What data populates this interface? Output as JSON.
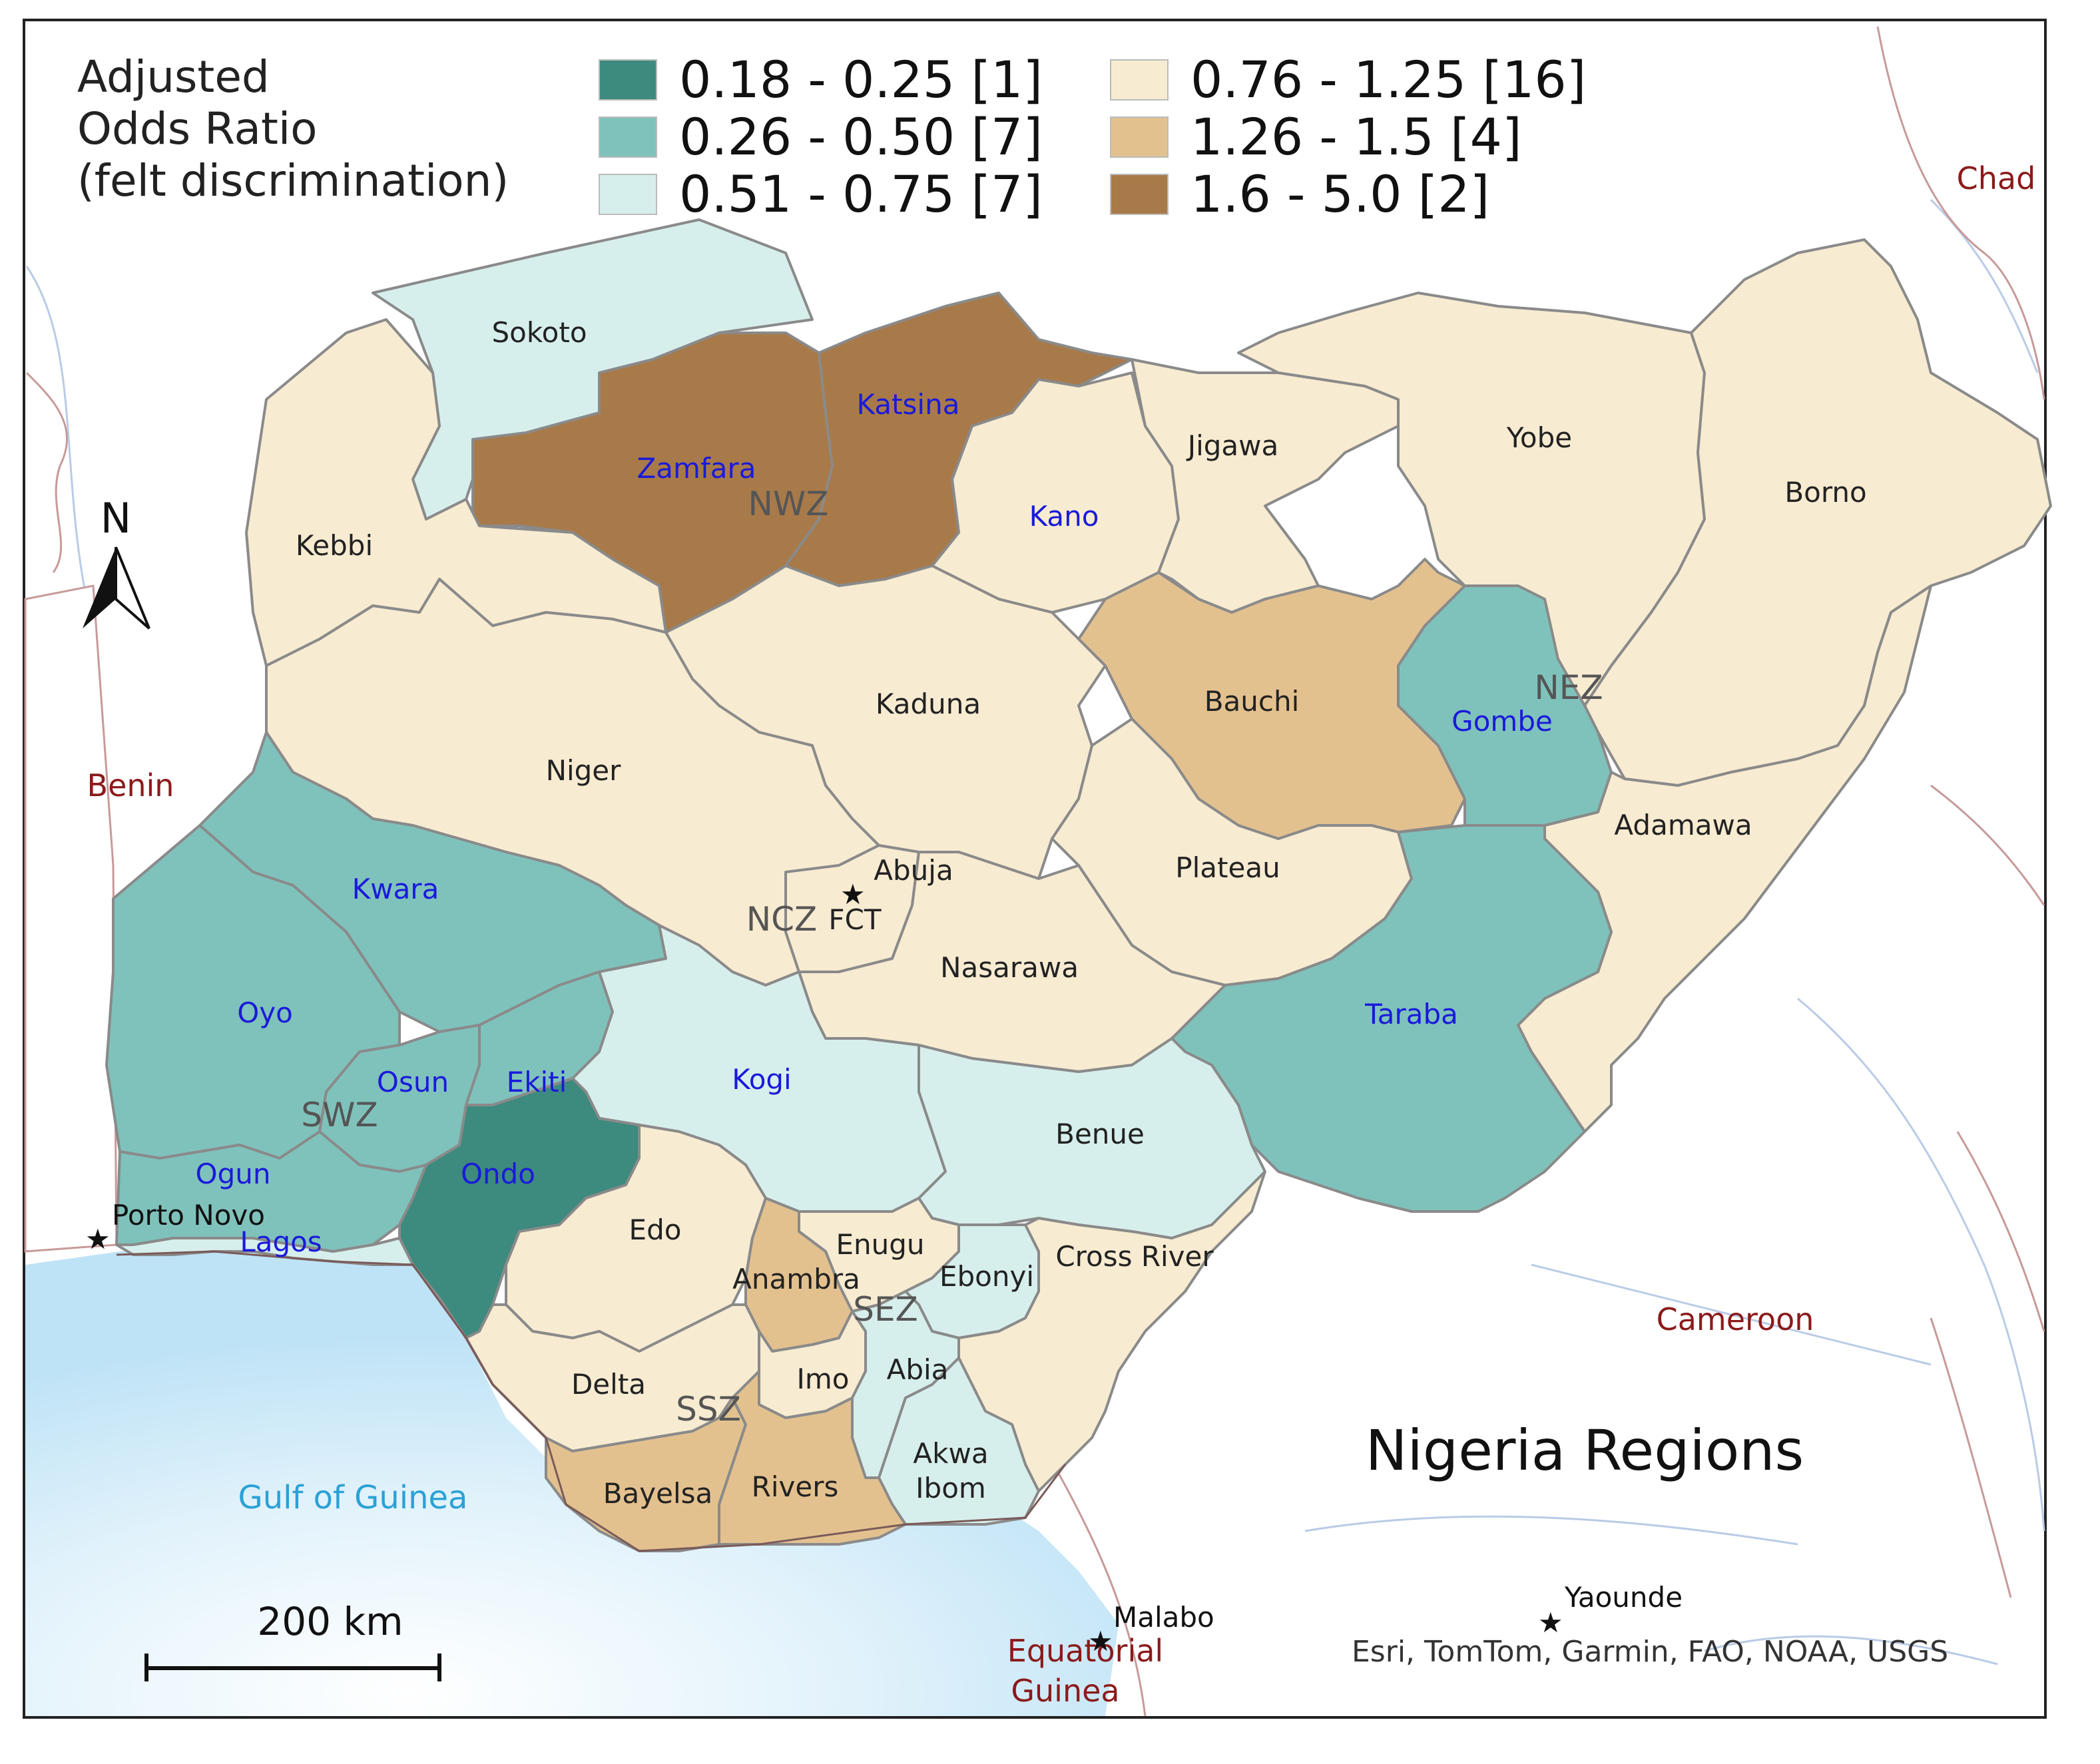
{
  "legend": {
    "title_lines": [
      "Adjusted",
      "Odds Ratio",
      "(felt discrimination)"
    ],
    "classes": [
      {
        "label": "0.18 - 0.25 [1]",
        "color": "#3d8a7e"
      },
      {
        "label": "0.26 - 0.50 [7]",
        "color": "#7fc2bb"
      },
      {
        "label": "0.51 - 0.75 [7]",
        "color": "#d7efec"
      },
      {
        "label": "0.76 - 1.25 [16]",
        "color": "#f7ebd1"
      },
      {
        "label": "1.26 - 1.5 [4]",
        "color": "#e3c18f"
      },
      {
        "label": "1.6 - 5.0 [2]",
        "color": "#a87a49"
      }
    ]
  },
  "title": "Nigeria Regions",
  "credits": "Esri, TomTom, Garmin, FAO, NOAA, USGS",
  "scale_bar": {
    "label": "200 km"
  },
  "north_arrow": {
    "label": "N"
  },
  "states": [
    {
      "name": "Sokoto",
      "class": 2,
      "highlight": false
    },
    {
      "name": "Zamfara",
      "class": 5,
      "highlight": true
    },
    {
      "name": "Katsina",
      "class": 5,
      "highlight": true
    },
    {
      "name": "Kebbi",
      "class": 3,
      "highlight": false
    },
    {
      "name": "Kano",
      "class": 3,
      "highlight": true
    },
    {
      "name": "Jigawa",
      "class": 3,
      "highlight": false
    },
    {
      "name": "Yobe",
      "class": 3,
      "highlight": false
    },
    {
      "name": "Borno",
      "class": 3,
      "highlight": false
    },
    {
      "name": "Kaduna",
      "class": 3,
      "highlight": false
    },
    {
      "name": "Bauchi",
      "class": 4,
      "highlight": false
    },
    {
      "name": "Gombe",
      "class": 1,
      "highlight": true
    },
    {
      "name": "Niger",
      "class": 3,
      "highlight": false
    },
    {
      "name": "Abuja",
      "class": 3,
      "highlight": false
    },
    {
      "name": "FCT",
      "class": 3,
      "highlight": false
    },
    {
      "name": "Plateau",
      "class": 3,
      "highlight": false
    },
    {
      "name": "Adamawa",
      "class": 3,
      "highlight": false
    },
    {
      "name": "Kwara",
      "class": 1,
      "highlight": true
    },
    {
      "name": "Nasarawa",
      "class": 3,
      "highlight": false
    },
    {
      "name": "Oyo",
      "class": 1,
      "highlight": true
    },
    {
      "name": "Taraba",
      "class": 1,
      "highlight": true
    },
    {
      "name": "Osun",
      "class": 1,
      "highlight": true
    },
    {
      "name": "Ekiti",
      "class": 1,
      "highlight": true
    },
    {
      "name": "Kogi",
      "class": 2,
      "highlight": true
    },
    {
      "name": "Benue",
      "class": 2,
      "highlight": false
    },
    {
      "name": "Ogun",
      "class": 1,
      "highlight": true
    },
    {
      "name": "Ondo",
      "class": 0,
      "highlight": true
    },
    {
      "name": "Lagos",
      "class": 2,
      "highlight": true
    },
    {
      "name": "Edo",
      "class": 3,
      "highlight": false
    },
    {
      "name": "Enugu",
      "class": 3,
      "highlight": false
    },
    {
      "name": "Anambra",
      "class": 4,
      "highlight": false
    },
    {
      "name": "Ebonyi",
      "class": 2,
      "highlight": false
    },
    {
      "name": "Cross River",
      "class": 3,
      "highlight": false
    },
    {
      "name": "Imo",
      "class": 3,
      "highlight": false
    },
    {
      "name": "Abia",
      "class": 2,
      "highlight": false
    },
    {
      "name": "Delta",
      "class": 3,
      "highlight": false
    },
    {
      "name": "Akwa",
      "class": 2,
      "highlight": false
    },
    {
      "name": "Ibom",
      "class": 2,
      "highlight": false
    },
    {
      "name": "Bayelsa",
      "class": 4,
      "highlight": false
    },
    {
      "name": "Rivers",
      "class": 4,
      "highlight": false
    }
  ],
  "zones": [
    "NWZ",
    "NEZ",
    "NCZ",
    "SWZ",
    "SEZ",
    "SSZ"
  ],
  "countries": [
    "Chad",
    "Benin",
    "Cameroon",
    "Equatorial",
    "Guinea"
  ],
  "cities": [
    "Porto Novo",
    "Malabo",
    "Yaounde"
  ],
  "water": [
    "Gulf of Guinea"
  ]
}
